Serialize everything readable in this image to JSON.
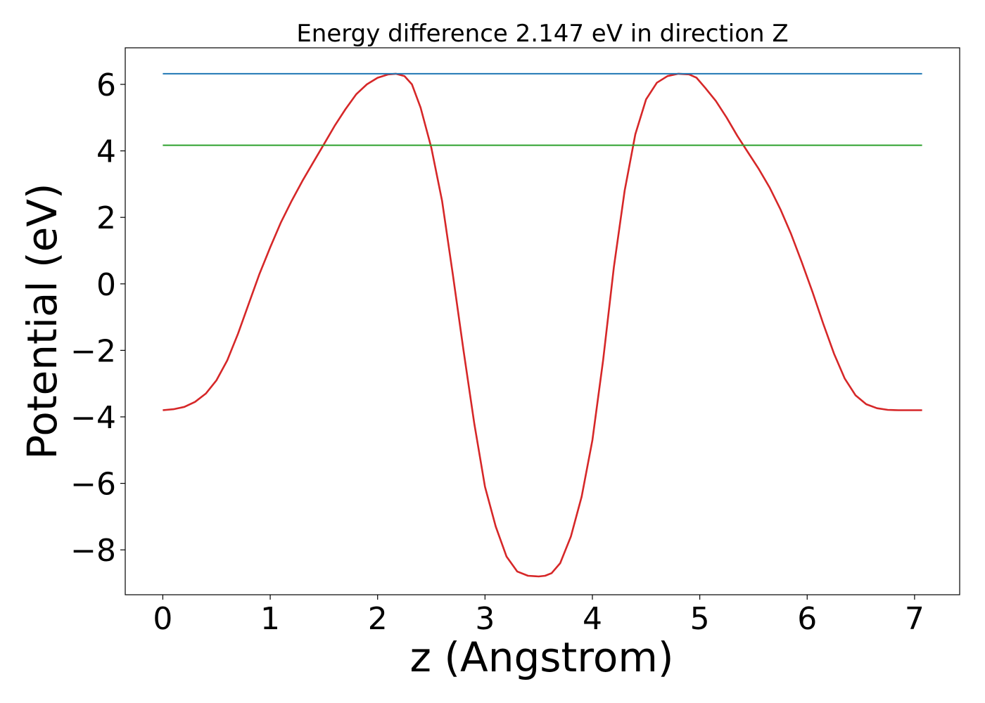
{
  "chart_data": {
    "type": "line",
    "title": "Energy difference 2.147 eV in direction Z",
    "xlabel": "z (Angstrom)",
    "ylabel": "Potential (eV)",
    "xlim": [
      -0.35,
      7.42
    ],
    "ylim": [
      -9.35,
      7.1
    ],
    "xticks": [
      0,
      1,
      2,
      3,
      4,
      5,
      6,
      7
    ],
    "xtick_labels": [
      "0",
      "1",
      "2",
      "3",
      "4",
      "5",
      "6",
      "7"
    ],
    "yticks": [
      6,
      4,
      2,
      0,
      -2,
      -4,
      -6,
      -8
    ],
    "ytick_labels": [
      "6",
      "4",
      "2",
      "0",
      "−2",
      "−4",
      "−6",
      "−8"
    ],
    "grid": false,
    "series": [
      {
        "color": "#d62728",
        "x": [
          0.0,
          0.1,
          0.2,
          0.3,
          0.4,
          0.5,
          0.6,
          0.7,
          0.8,
          0.9,
          1.0,
          1.1,
          1.2,
          1.3,
          1.4,
          1.5,
          1.6,
          1.7,
          1.8,
          1.9,
          2.0,
          2.1,
          2.17,
          2.25,
          2.32,
          2.4,
          2.5,
          2.6,
          2.7,
          2.8,
          2.9,
          3.0,
          3.1,
          3.2,
          3.3,
          3.4,
          3.5,
          3.56,
          3.62,
          3.7,
          3.8,
          3.9,
          4.0,
          4.1,
          4.2,
          4.3,
          4.4,
          4.5,
          4.6,
          4.7,
          4.8,
          4.9,
          4.97,
          5.05,
          5.15,
          5.25,
          5.35,
          5.45,
          5.55,
          5.65,
          5.75,
          5.85,
          5.95,
          6.05,
          6.15,
          6.25,
          6.35,
          6.45,
          6.55,
          6.65,
          6.75,
          6.85,
          6.95,
          7.07
        ],
        "y": [
          -3.8,
          -3.77,
          -3.7,
          -3.55,
          -3.3,
          -2.9,
          -2.3,
          -1.5,
          -0.6,
          0.3,
          1.1,
          1.85,
          2.5,
          3.1,
          3.65,
          4.2,
          4.75,
          5.25,
          5.7,
          6.0,
          6.2,
          6.3,
          6.32,
          6.25,
          6.0,
          5.3,
          4.1,
          2.5,
          0.3,
          -2.0,
          -4.2,
          -6.1,
          -7.3,
          -8.2,
          -8.65,
          -8.78,
          -8.8,
          -8.78,
          -8.7,
          -8.4,
          -7.6,
          -6.4,
          -4.7,
          -2.3,
          0.5,
          2.8,
          4.5,
          5.55,
          6.05,
          6.25,
          6.32,
          6.3,
          6.2,
          5.9,
          5.5,
          5.0,
          4.45,
          3.95,
          3.45,
          2.9,
          2.25,
          1.5,
          0.65,
          -0.25,
          -1.2,
          -2.1,
          -2.85,
          -3.35,
          -3.62,
          -3.74,
          -3.79,
          -3.8,
          -3.8,
          -3.8
        ]
      },
      {
        "color": "#1f77b4",
        "x": [
          0.0,
          7.07
        ],
        "y": [
          6.32,
          6.32
        ]
      },
      {
        "color": "#2ca02c",
        "x": [
          0.0,
          7.07
        ],
        "y": [
          4.17,
          4.17
        ]
      }
    ]
  }
}
